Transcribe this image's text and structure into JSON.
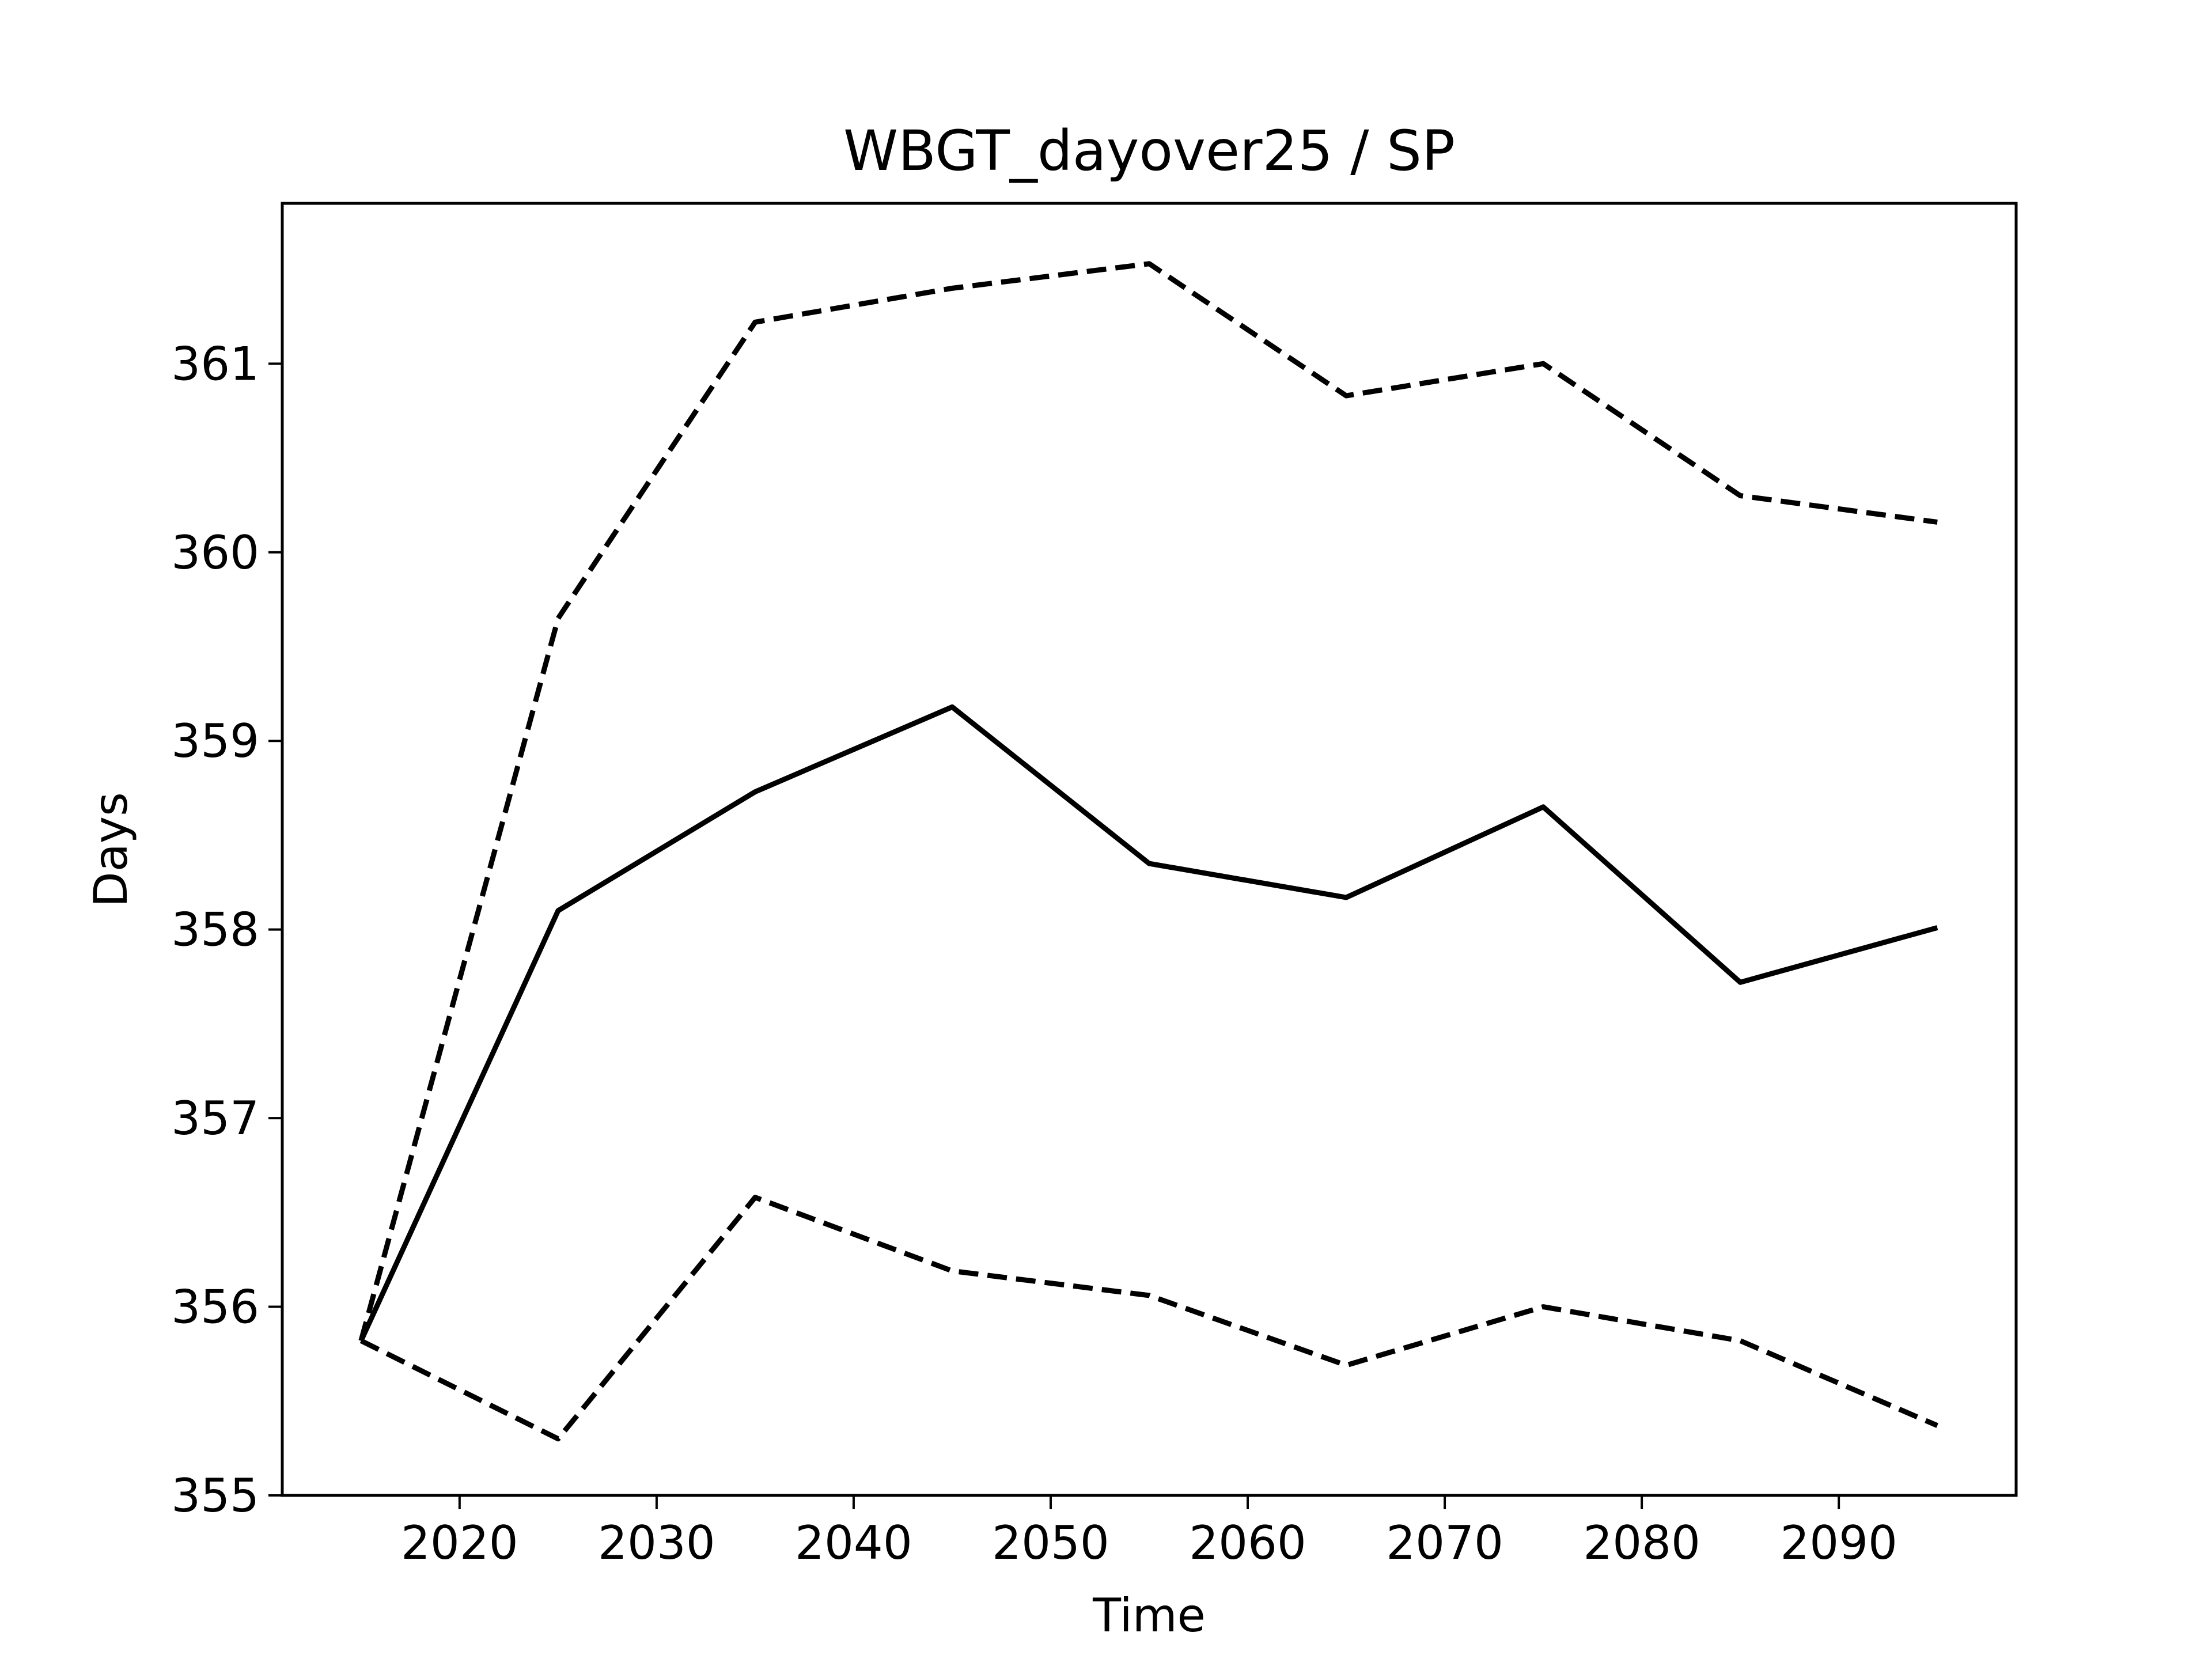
{
  "chart_data": {
    "type": "line",
    "title": "WBGT_dayover25 / SP",
    "xlabel": "Time",
    "ylabel": "Days",
    "xlim": [
      2011,
      2099
    ],
    "ylim": [
      355,
      361.85
    ],
    "xticks": [
      2020,
      2030,
      2040,
      2050,
      2060,
      2070,
      2080,
      2090
    ],
    "yticks": [
      355,
      356,
      357,
      358,
      359,
      360,
      361
    ],
    "grid": false,
    "legend": "none",
    "x": [
      2015,
      2025,
      2035,
      2045,
      2055,
      2065,
      2075,
      2085,
      2095
    ],
    "series": [
      {
        "style": "dashed",
        "color": "#000000",
        "values": [
          355.82,
          359.65,
          361.22,
          361.4,
          361.53,
          360.83,
          361.0,
          360.3,
          360.16
        ]
      },
      {
        "style": "solid",
        "color": "#000000",
        "values": [
          355.82,
          358.1,
          358.73,
          359.18,
          358.35,
          358.17,
          358.65,
          357.72,
          358.01
        ]
      },
      {
        "style": "dashed",
        "color": "#000000",
        "values": [
          355.82,
          355.3,
          356.58,
          356.19,
          356.06,
          355.69,
          356.0,
          355.82,
          355.37
        ]
      }
    ]
  }
}
